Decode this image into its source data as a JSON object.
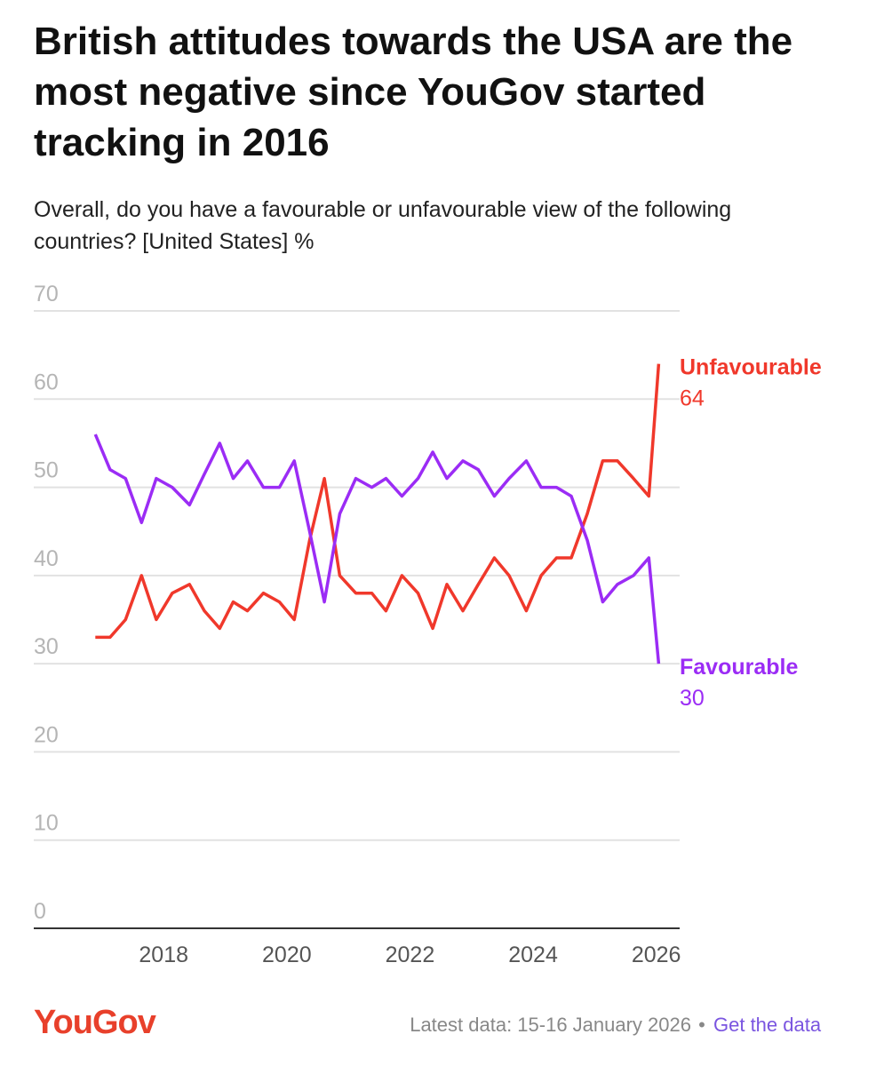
{
  "chart_data": {
    "type": "line",
    "title": "British attitudes towards the USA are the most negative since YouGov started tracking in 2016",
    "subtitle": "Overall, do you have a favourable or unfavourable view of the following countries? [United States] %",
    "x": [
      2016.89,
      2017.13,
      2017.38,
      2017.64,
      2017.88,
      2018.14,
      2018.42,
      2018.66,
      2018.91,
      2019.13,
      2019.36,
      2019.62,
      2019.88,
      2020.12,
      2020.37,
      2020.61,
      2020.86,
      2021.12,
      2021.38,
      2021.61,
      2021.87,
      2022.13,
      2022.37,
      2022.6,
      2022.86,
      2023.11,
      2023.37,
      2023.61,
      2023.89,
      2024.13,
      2024.38,
      2024.62,
      2024.88,
      2025.13,
      2025.37,
      2025.63,
      2025.88,
      2026.04
    ],
    "series": [
      {
        "name": "Unfavourable",
        "color": "#f0382b",
        "values": [
          33,
          33,
          35,
          40,
          35,
          38,
          39,
          36,
          34,
          37,
          36,
          38,
          37,
          35,
          44,
          51,
          40,
          38,
          38,
          36,
          40,
          38,
          34,
          39,
          36,
          39,
          42,
          40,
          36,
          40,
          42,
          42,
          47,
          53,
          53,
          51,
          49,
          64
        ]
      },
      {
        "name": "Favourable",
        "color": "#9b2cf5",
        "values": [
          56,
          52,
          51,
          46,
          51,
          50,
          48,
          51.5,
          55,
          51,
          53,
          50,
          50,
          53,
          45,
          37,
          47,
          51,
          50,
          51,
          49,
          51,
          54,
          51,
          53,
          52,
          49,
          51,
          53,
          50,
          50,
          49,
          44,
          37,
          39,
          40,
          42,
          30
        ]
      }
    ],
    "xlim": [
      2015.89,
      2026.38
    ],
    "xticks": [
      2018,
      2020,
      2022,
      2024,
      2026
    ],
    "ylim": [
      0,
      70
    ],
    "yticks": [
      0,
      10,
      20,
      30,
      40,
      50,
      60,
      70
    ],
    "grid": true,
    "footer": {
      "logo": "YouGov",
      "note": "Latest data: 15-16 January 2026",
      "separator": "•",
      "link": "Get the data"
    }
  }
}
